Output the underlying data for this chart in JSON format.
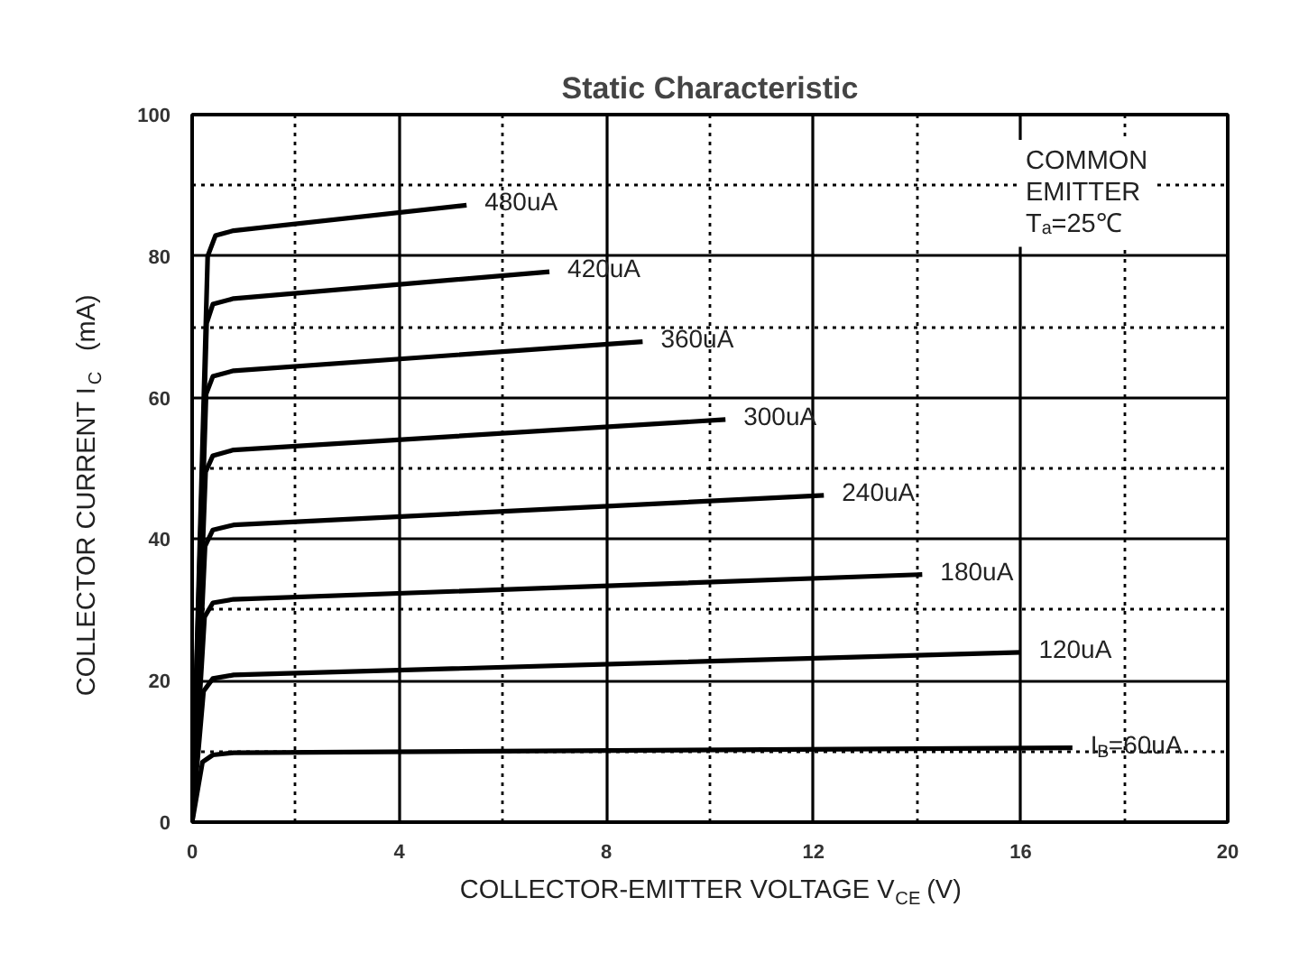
{
  "chart_data": {
    "type": "line",
    "title": "Static Characteristic",
    "xlabel": "COLLECTOR-EMITTER VOLTAGE   V$_{CE}$ (V)",
    "ylabel": "COLLECTOR CURRENT   I$_{C}$   (mA)",
    "xlim": [
      0,
      20
    ],
    "ylim": [
      0,
      100
    ],
    "xticks": [
      0,
      {
        "value": 2,
        "label": null
      },
      4,
      {
        "value": 6,
        "label": null
      },
      8,
      {
        "value": 10,
        "label": null
      },
      12,
      {
        "value": 14,
        "label": null
      },
      16,
      {
        "value": 18,
        "label": null
      },
      20
    ],
    "yticks": [
      0,
      {
        "value": 10,
        "label": null
      },
      20,
      {
        "value": 30,
        "label": null
      },
      40,
      {
        "value": 50,
        "label": null
      },
      60,
      {
        "value": 70,
        "label": null
      },
      80,
      {
        "value": 90,
        "label": null
      },
      100
    ],
    "grid": true,
    "marker": "none",
    "line_style": "solid",
    "annotations": [
      "COMMON\nEMITTER\nTₐ=25℃"
    ],
    "series": [
      {
        "name": "I$_{B}$=60uA",
        "color": "#000000",
        "x": [
          0,
          0.2,
          0.4,
          0.8,
          17.0
        ],
        "values": [
          0,
          8.5,
          9.5,
          9.8,
          10.5
        ]
      },
      {
        "name": "120uA",
        "color": "#000000",
        "x": [
          0,
          0.22,
          0.4,
          0.8,
          16.0
        ],
        "values": [
          0,
          18.5,
          20.3,
          20.8,
          24.0
        ]
      },
      {
        "name": "180uA",
        "color": "#000000",
        "x": [
          0,
          0.24,
          0.4,
          0.8,
          14.1
        ],
        "values": [
          0,
          29,
          31,
          31.5,
          35.0
        ]
      },
      {
        "name": "240uA",
        "color": "#000000",
        "x": [
          0,
          0.25,
          0.4,
          0.8,
          12.2
        ],
        "values": [
          0,
          39,
          41.3,
          42,
          46.2
        ]
      },
      {
        "name": "300uA",
        "color": "#000000",
        "x": [
          0,
          0.26,
          0.4,
          0.8,
          10.3
        ],
        "values": [
          0,
          49.5,
          51.8,
          52.6,
          56.9
        ]
      },
      {
        "name": "360uA",
        "color": "#000000",
        "x": [
          0,
          0.27,
          0.4,
          0.8,
          8.7
        ],
        "values": [
          0,
          60.5,
          63,
          63.8,
          67.9
        ]
      },
      {
        "name": "420uA",
        "color": "#000000",
        "x": [
          0,
          0.28,
          0.4,
          0.8,
          6.9
        ],
        "values": [
          0,
          70.5,
          73.2,
          74,
          77.8
        ]
      },
      {
        "name": "480uA",
        "color": "#000000",
        "x": [
          0,
          0.3,
          0.45,
          0.8,
          5.3
        ],
        "values": [
          0,
          80,
          82.9,
          83.6,
          87.2
        ]
      }
    ]
  }
}
